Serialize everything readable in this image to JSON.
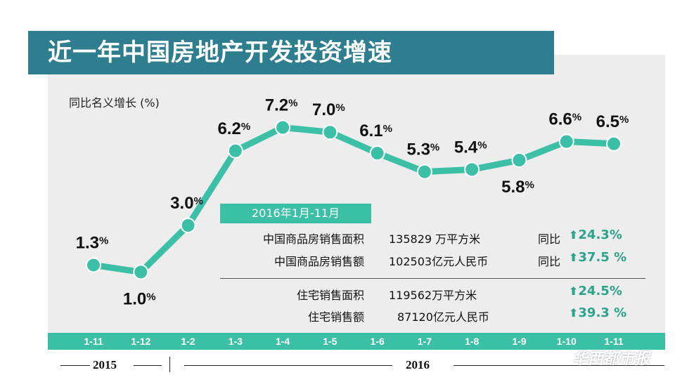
{
  "title": "近一年中国房地产开发投资增速",
  "y_axis_label": "同比名义增长 (%)",
  "chart_data": {
    "type": "line",
    "title": "近一年中国房地产开发投资增速",
    "ylabel": "同比名义增长 (%)",
    "categories": [
      "1-11",
      "1-12",
      "1-2",
      "1-3",
      "1-4",
      "1-5",
      "1-6",
      "1-7",
      "1-8",
      "1-9",
      "1-10",
      "1-11"
    ],
    "values": [
      1.3,
      1.0,
      3.0,
      6.2,
      7.2,
      7.0,
      6.1,
      5.3,
      5.4,
      5.8,
      6.6,
      6.5
    ],
    "labels": [
      "1.3%",
      "1.0%",
      "3.0%",
      "6.2%",
      "7.2%",
      "7.0%",
      "6.1%",
      "5.3%",
      "5.4%",
      "5.8%",
      "6.6%",
      "6.5%"
    ],
    "ylim": [
      0,
      8
    ],
    "years": [
      {
        "label": "2015"
      },
      {
        "label": "2016"
      }
    ],
    "line_color": "#3bbfa6"
  },
  "info_box": {
    "header": "2016年1月-11月",
    "rows": [
      {
        "item": "中国商品房销售面积",
        "value": "135829 万平方米",
        "compare": "同比",
        "change": "24.3%"
      },
      {
        "item": "中国商品房销售额",
        "value": "102503亿元人民币",
        "compare": "同比",
        "change": "37.5 %"
      },
      {
        "item": "住宅销售面积",
        "value": "119562万平方米",
        "compare": "",
        "change": "24.5%"
      },
      {
        "item": "住宅销售额",
        "value": "87120亿元人民币",
        "compare": "",
        "change": "39.3 %"
      }
    ]
  },
  "watermark": "华西都市报",
  "colors": {
    "title_bar": "#2e7e8f",
    "accent": "#3bbfa6",
    "change_text": "#2aa38a",
    "background": "#ededed"
  }
}
